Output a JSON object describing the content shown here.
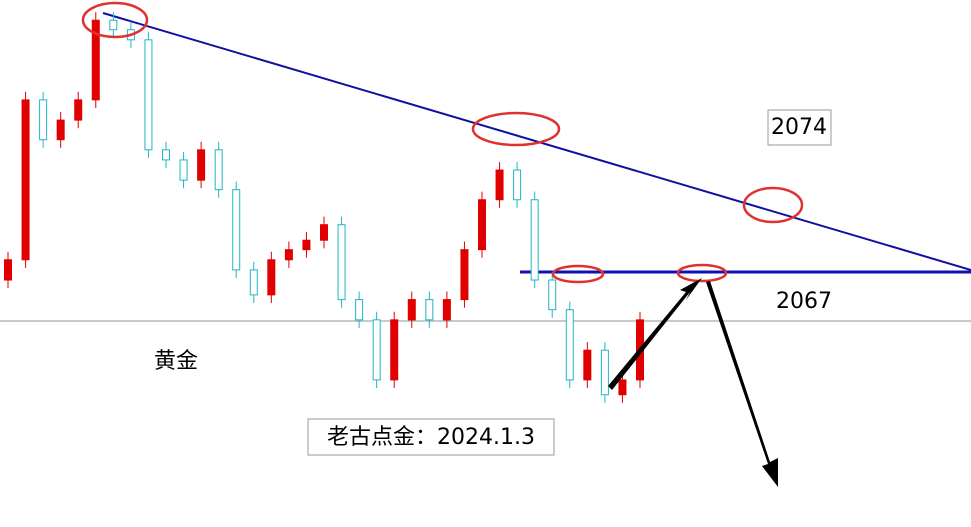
{
  "chart_data": {
    "type": "candlestick",
    "annotations": {
      "upper_level": "2074",
      "lower_level": "2067",
      "instrument": "黄金",
      "author_date": "老古点金：2024.1.3"
    },
    "series": {
      "open": [
        2048.5,
        2051.5,
        2075.2,
        2069.3,
        2072.2,
        2075.2,
        2087.0,
        2085.6,
        2084.1,
        2067.8,
        2066.3,
        2063.3,
        2067.8,
        2061.9,
        2050.0,
        2046.3,
        2051.5,
        2053.0,
        2054.4,
        2056.7,
        2045.6,
        2042.6,
        2033.7,
        2042.6,
        2045.6,
        2042.6,
        2045.6,
        2053.0,
        2060.4,
        2064.8,
        2060.4,
        2048.5,
        2044.1,
        2033.7,
        2038.1,
        2031.5,
        2033.7
      ],
      "high": [
        2052.7,
        2076.4,
        2076.4,
        2073.4,
        2076.4,
        2088.2,
        2088.2,
        2086.8,
        2085.3,
        2069.0,
        2067.5,
        2069.0,
        2069.0,
        2063.1,
        2051.2,
        2052.7,
        2054.2,
        2055.6,
        2057.9,
        2057.9,
        2046.8,
        2043.8,
        2043.8,
        2046.8,
        2046.8,
        2046.8,
        2054.2,
        2061.6,
        2066.0,
        2066.0,
        2061.6,
        2049.7,
        2045.3,
        2039.3,
        2039.3,
        2034.9,
        2043.8
      ],
      "low": [
        2047.3,
        2050.3,
        2068.1,
        2068.1,
        2071.0,
        2074.0,
        2084.4,
        2082.9,
        2066.6,
        2065.1,
        2062.1,
        2062.1,
        2060.7,
        2048.8,
        2045.1,
        2045.1,
        2050.3,
        2051.8,
        2053.2,
        2044.4,
        2041.4,
        2032.5,
        2032.5,
        2041.4,
        2041.4,
        2041.4,
        2044.4,
        2051.8,
        2059.2,
        2059.2,
        2047.3,
        2042.9,
        2032.5,
        2032.5,
        2030.3,
        2030.3,
        2032.5
      ],
      "close": [
        2051.5,
        2075.2,
        2069.3,
        2072.2,
        2075.2,
        2087.0,
        2085.6,
        2084.1,
        2067.8,
        2066.3,
        2063.3,
        2067.8,
        2061.9,
        2050.0,
        2046.3,
        2051.5,
        2053.0,
        2054.4,
        2056.7,
        2045.6,
        2042.6,
        2033.7,
        2042.6,
        2045.6,
        2042.6,
        2045.6,
        2053.0,
        2060.4,
        2064.8,
        2060.4,
        2048.5,
        2044.1,
        2033.7,
        2038.1,
        2031.5,
        2033.7,
        2042.6
      ]
    },
    "up_color": "#e00000",
    "down_color": "#1fb5c8",
    "ylim": [
      2011.9,
      2090.0
    ]
  }
}
